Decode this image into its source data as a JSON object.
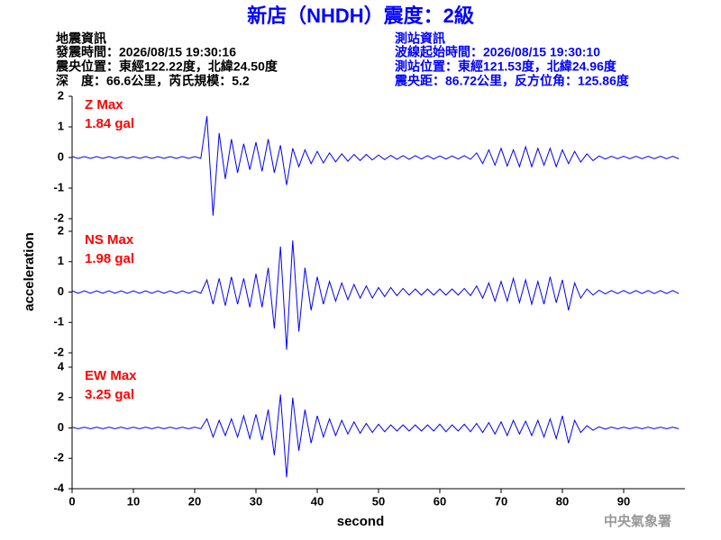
{
  "header": {
    "title": "新店（NHDH）震度：2級",
    "left": [
      "地震資訊",
      "發震時間：2026/08/15 19:30:16",
      "震央位置：東經122.22度，北緯24.50度",
      "深　度：66.6公里，芮氏規模：5.2"
    ],
    "right": [
      "測站資訊",
      "波線起始時間：2026/08/15 19:30:10",
      "測站位置：東經121.53度，北緯24.96度",
      "震央距：86.72公里，反方位角：125.86度"
    ],
    "ylabel": "acceleration",
    "xlabel": "second",
    "credit": "中央氣象署"
  },
  "chart_data": [
    {
      "type": "line",
      "annotations": [
        "Z Max",
        "1.84 gal"
      ],
      "color": "#0000ff",
      "ylim": [
        -2,
        2
      ],
      "yticks": [
        -2,
        -1,
        0,
        1,
        2
      ],
      "xlim": [
        0,
        100
      ],
      "x": [
        0,
        1,
        2,
        3,
        4,
        5,
        6,
        7,
        8,
        9,
        10,
        11,
        12,
        13,
        14,
        15,
        16,
        17,
        18,
        19,
        20,
        21,
        22,
        23,
        24,
        25,
        26,
        27,
        28,
        29,
        30,
        31,
        32,
        33,
        34,
        35,
        36,
        37,
        38,
        39,
        40,
        41,
        42,
        43,
        44,
        45,
        46,
        47,
        48,
        49,
        50,
        51,
        52,
        53,
        54,
        55,
        56,
        57,
        58,
        59,
        60,
        61,
        62,
        63,
        64,
        65,
        66,
        67,
        68,
        69,
        70,
        71,
        72,
        73,
        74,
        75,
        76,
        77,
        78,
        79,
        80,
        81,
        82,
        83,
        84,
        85,
        86,
        87,
        88,
        89,
        90,
        91,
        92,
        93,
        94,
        95,
        96,
        97,
        98,
        99
      ],
      "values": [
        0.03,
        -0.03,
        0.03,
        -0.03,
        0.03,
        -0.03,
        0.03,
        -0.03,
        0.03,
        -0.03,
        0.03,
        -0.03,
        0.03,
        -0.03,
        0.03,
        -0.03,
        0.03,
        -0.03,
        0.03,
        -0.03,
        0.03,
        -0.03,
        1.35,
        -1.9,
        0.8,
        -0.7,
        0.6,
        -0.5,
        0.45,
        -0.4,
        0.5,
        -0.45,
        0.6,
        -0.5,
        0.4,
        -0.9,
        0.3,
        -0.3,
        0.25,
        -0.2,
        0.2,
        -0.18,
        0.15,
        -0.14,
        0.12,
        -0.12,
        0.1,
        -0.1,
        0.1,
        -0.08,
        0.08,
        -0.07,
        0.07,
        -0.06,
        0.06,
        -0.06,
        0.06,
        -0.05,
        0.06,
        -0.05,
        0.05,
        -0.05,
        0.05,
        -0.05,
        0.06,
        -0.06,
        0.15,
        -0.2,
        0.25,
        -0.25,
        0.3,
        -0.28,
        0.25,
        -0.3,
        0.35,
        -0.3,
        0.3,
        -0.25,
        0.3,
        -0.3,
        0.25,
        -0.2,
        0.2,
        -0.15,
        0.12,
        -0.1,
        0.05,
        -0.05,
        0.04,
        -0.04,
        0.04,
        -0.04,
        0.04,
        -0.04,
        0.04,
        -0.04,
        0.04,
        -0.04,
        0.04,
        -0.04
      ]
    },
    {
      "type": "line",
      "annotations": [
        "NS Max",
        "1.98 gal"
      ],
      "color": "#0000ff",
      "ylim": [
        -2,
        2
      ],
      "yticks": [
        -2,
        -1,
        0,
        1,
        2
      ],
      "xlim": [
        0,
        100
      ],
      "x": [
        0,
        1,
        2,
        3,
        4,
        5,
        6,
        7,
        8,
        9,
        10,
        11,
        12,
        13,
        14,
        15,
        16,
        17,
        18,
        19,
        20,
        21,
        22,
        23,
        24,
        25,
        26,
        27,
        28,
        29,
        30,
        31,
        32,
        33,
        34,
        35,
        36,
        37,
        38,
        39,
        40,
        41,
        42,
        43,
        44,
        45,
        46,
        47,
        48,
        49,
        50,
        51,
        52,
        53,
        54,
        55,
        56,
        57,
        58,
        59,
        60,
        61,
        62,
        63,
        64,
        65,
        66,
        67,
        68,
        69,
        70,
        71,
        72,
        73,
        74,
        75,
        76,
        77,
        78,
        79,
        80,
        81,
        82,
        83,
        84,
        85,
        86,
        87,
        88,
        89,
        90,
        91,
        92,
        93,
        94,
        95,
        96,
        97,
        98,
        99
      ],
      "values": [
        0.04,
        -0.04,
        0.04,
        -0.04,
        0.04,
        -0.04,
        0.04,
        -0.04,
        0.04,
        -0.04,
        0.04,
        -0.04,
        0.04,
        -0.04,
        0.04,
        -0.04,
        0.04,
        -0.04,
        0.04,
        -0.04,
        0.04,
        -0.04,
        0.4,
        -0.4,
        0.45,
        -0.45,
        0.5,
        -0.4,
        0.45,
        -0.5,
        0.6,
        -0.5,
        0.8,
        -1.2,
        1.5,
        -1.9,
        1.7,
        -1.3,
        0.8,
        -0.6,
        0.5,
        -0.4,
        0.35,
        -0.3,
        0.3,
        -0.25,
        0.25,
        -0.2,
        0.2,
        -0.2,
        0.15,
        -0.15,
        0.15,
        -0.12,
        0.12,
        -0.1,
        0.1,
        -0.1,
        0.1,
        -0.1,
        0.1,
        -0.1,
        0.1,
        -0.1,
        0.12,
        -0.12,
        0.2,
        -0.2,
        0.3,
        -0.3,
        0.35,
        -0.3,
        0.45,
        -0.35,
        0.4,
        -0.4,
        0.35,
        -0.4,
        0.5,
        -0.35,
        0.4,
        -0.6,
        0.3,
        -0.2,
        0.1,
        -0.1,
        0.06,
        -0.06,
        0.05,
        -0.05,
        0.05,
        -0.05,
        0.05,
        -0.05,
        0.05,
        -0.05,
        0.05,
        -0.05,
        0.05,
        -0.05
      ]
    },
    {
      "type": "line",
      "annotations": [
        "EW Max",
        "3.25 gal"
      ],
      "color": "#0000ff",
      "ylim": [
        -4,
        4
      ],
      "yticks": [
        -4,
        -2,
        0,
        2,
        4
      ],
      "xlim": [
        0,
        100
      ],
      "xticks": [
        0,
        10,
        20,
        30,
        40,
        50,
        60,
        70,
        80,
        90
      ],
      "x": [
        0,
        1,
        2,
        3,
        4,
        5,
        6,
        7,
        8,
        9,
        10,
        11,
        12,
        13,
        14,
        15,
        16,
        17,
        18,
        19,
        20,
        21,
        22,
        23,
        24,
        25,
        26,
        27,
        28,
        29,
        30,
        31,
        32,
        33,
        34,
        35,
        36,
        37,
        38,
        39,
        40,
        41,
        42,
        43,
        44,
        45,
        46,
        47,
        48,
        49,
        50,
        51,
        52,
        53,
        54,
        55,
        56,
        57,
        58,
        59,
        60,
        61,
        62,
        63,
        64,
        65,
        66,
        67,
        68,
        69,
        70,
        71,
        72,
        73,
        74,
        75,
        76,
        77,
        78,
        79,
        80,
        81,
        82,
        83,
        84,
        85,
        86,
        87,
        88,
        89,
        90,
        91,
        92,
        93,
        94,
        95,
        96,
        97,
        98,
        99
      ],
      "values": [
        0.05,
        -0.05,
        0.05,
        -0.05,
        0.05,
        -0.05,
        0.05,
        -0.05,
        0.05,
        -0.05,
        0.05,
        -0.05,
        0.05,
        -0.05,
        0.05,
        -0.05,
        0.05,
        -0.05,
        0.05,
        -0.05,
        0.05,
        -0.05,
        0.6,
        -0.6,
        0.5,
        -0.5,
        0.6,
        -0.6,
        0.8,
        -0.7,
        0.9,
        -0.8,
        1.2,
        -1.8,
        2.2,
        -3.25,
        2.0,
        -1.5,
        1.2,
        -1.0,
        0.8,
        -0.6,
        0.6,
        -0.5,
        0.5,
        -0.4,
        0.4,
        -0.35,
        0.3,
        -0.3,
        0.25,
        -0.25,
        0.2,
        -0.2,
        0.2,
        -0.2,
        0.2,
        -0.2,
        0.2,
        -0.2,
        0.25,
        -0.25,
        0.2,
        -0.2,
        0.25,
        -0.25,
        0.3,
        -0.3,
        0.35,
        -0.4,
        0.4,
        -0.5,
        0.5,
        -0.4,
        0.45,
        -0.5,
        0.5,
        -0.6,
        0.6,
        -0.7,
        0.8,
        -1.0,
        0.5,
        -0.3,
        0.15,
        -0.15,
        0.08,
        -0.08,
        0.06,
        -0.06,
        0.05,
        -0.05,
        0.05,
        -0.05,
        0.05,
        -0.05,
        0.05,
        -0.05,
        0.05,
        -0.05
      ]
    }
  ]
}
